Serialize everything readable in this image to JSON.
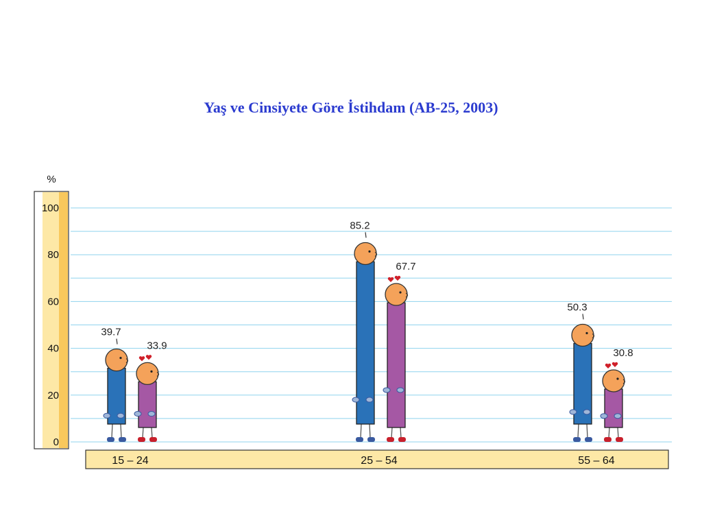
{
  "chart_data": {
    "type": "bar",
    "title": "Yaş ve Cinsiyete Göre İstihdam (AB-25, 2003)",
    "ylabel": "%",
    "ylim": [
      0,
      100
    ],
    "yticks": [
      "0",
      "20",
      "40",
      "60",
      "80",
      "100"
    ],
    "categories": [
      "15 – 24",
      "25 – 54",
      "55 – 64"
    ],
    "series": [
      {
        "values": [
          39.7,
          85.2,
          50.3
        ],
        "color": "#2a72b8",
        "figure": "male-figure"
      },
      {
        "values": [
          33.9,
          67.7,
          30.8
        ],
        "color": "#a558a4",
        "figure": "female-figure"
      }
    ],
    "value_labels": [
      [
        "39.7",
        "85.2",
        "50.3"
      ],
      [
        "33.9",
        "67.7",
        "30.8"
      ]
    ],
    "grid": true
  }
}
